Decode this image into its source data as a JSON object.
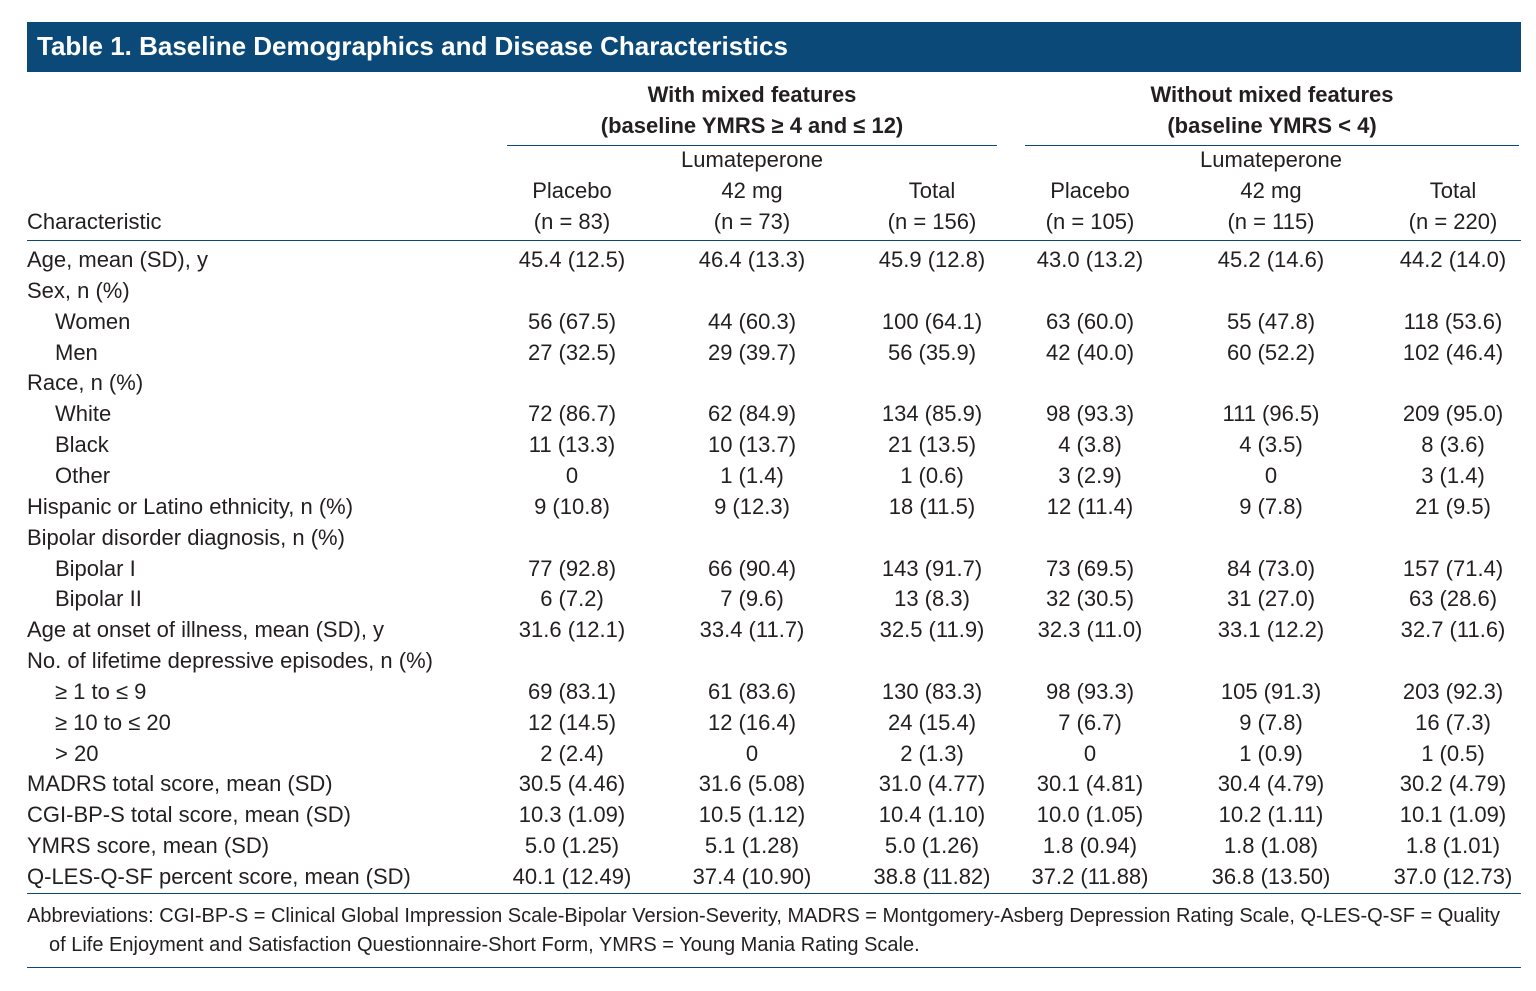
{
  "title": "Table 1. Baseline Demographics and Disease Characteristics",
  "stub_header": "Characteristic",
  "groups": [
    {
      "lines": [
        "With mixed features",
        "(baseline YMRS ≥ 4 and ≤ 12)"
      ],
      "columns": [
        {
          "lines": [
            "Placebo",
            "(n = 83)"
          ]
        },
        {
          "lines": [
            "Lumateperone",
            "42 mg",
            "(n = 73)"
          ]
        },
        {
          "lines": [
            "Total",
            "(n = 156)"
          ]
        }
      ]
    },
    {
      "lines": [
        "Without mixed features",
        "(baseline YMRS < 4)"
      ],
      "columns": [
        {
          "lines": [
            "Placebo",
            "(n = 105)"
          ]
        },
        {
          "lines": [
            "Lumateperone",
            "42 mg",
            "(n = 115)"
          ]
        },
        {
          "lines": [
            "Total",
            "(n = 220)"
          ]
        }
      ]
    }
  ],
  "rows": [
    {
      "label": "Age, mean (SD), y",
      "values": [
        "45.4 (12.5)",
        "46.4 (13.3)",
        "45.9 (12.8)",
        "43.0 (13.2)",
        "45.2 (14.6)",
        "44.2 (14.0)"
      ]
    },
    {
      "label": "Sex, n (%)",
      "rows": [
        {
          "label": "Women",
          "values": [
            "56 (67.5)",
            "44 (60.3)",
            "100 (64.1)",
            "63 (60.0)",
            "55 (47.8)",
            "118 (53.6)"
          ]
        },
        {
          "label": "Men",
          "values": [
            "27 (32.5)",
            "29 (39.7)",
            "56 (35.9)",
            "42 (40.0)",
            "60 (52.2)",
            "102 (46.4)"
          ]
        }
      ]
    },
    {
      "label": "Race, n (%)",
      "rows": [
        {
          "label": "White",
          "values": [
            "72 (86.7)",
            "62 (84.9)",
            "134 (85.9)",
            "98 (93.3)",
            "111 (96.5)",
            "209 (95.0)"
          ]
        },
        {
          "label": "Black",
          "values": [
            "11 (13.3)",
            "10 (13.7)",
            "21 (13.5)",
            "4 (3.8)",
            "4 (3.5)",
            "8 (3.6)"
          ]
        },
        {
          "label": "Other",
          "values": [
            "0",
            "1 (1.4)",
            "1 (0.6)",
            "3 (2.9)",
            "0",
            "3 (1.4)"
          ]
        }
      ]
    },
    {
      "label": "Hispanic or Latino ethnicity, n (%)",
      "values": [
        "9 (10.8)",
        "9 (12.3)",
        "18 (11.5)",
        "12 (11.4)",
        "9 (7.8)",
        "21 (9.5)"
      ]
    },
    {
      "label": "Bipolar disorder diagnosis, n (%)",
      "rows": [
        {
          "label": "Bipolar I",
          "values": [
            "77 (92.8)",
            "66 (90.4)",
            "143 (91.7)",
            "73 (69.5)",
            "84 (73.0)",
            "157 (71.4)"
          ]
        },
        {
          "label": "Bipolar II",
          "values": [
            "6 (7.2)",
            "7 (9.6)",
            "13 (8.3)",
            "32 (30.5)",
            "31 (27.0)",
            "63 (28.6)"
          ]
        }
      ]
    },
    {
      "label": "Age at onset of illness, mean (SD), y",
      "values": [
        "31.6 (12.1)",
        "33.4 (11.7)",
        "32.5 (11.9)",
        "32.3 (11.0)",
        "33.1 (12.2)",
        "32.7 (11.6)"
      ]
    },
    {
      "label": "No. of lifetime depressive episodes, n (%)",
      "rows": [
        {
          "label": "≥ 1 to ≤ 9",
          "values": [
            "69 (83.1)",
            "61 (83.6)",
            "130 (83.3)",
            "98 (93.3)",
            "105 (91.3)",
            "203 (92.3)"
          ]
        },
        {
          "label": "≥ 10 to ≤ 20",
          "values": [
            "12 (14.5)",
            "12 (16.4)",
            "24 (15.4)",
            "7 (6.7)",
            "9 (7.8)",
            "16 (7.3)"
          ]
        },
        {
          "label": "> 20",
          "values": [
            "2 (2.4)",
            "0",
            "2 (1.3)",
            "0",
            "1 (0.9)",
            "1 (0.5)"
          ]
        }
      ]
    },
    {
      "label": "MADRS total score, mean (SD)",
      "values": [
        "30.5 (4.46)",
        "31.6 (5.08)",
        "31.0 (4.77)",
        "30.1 (4.81)",
        "30.4 (4.79)",
        "30.2 (4.79)"
      ]
    },
    {
      "label": "CGI-BP-S total score, mean (SD)",
      "values": [
        "10.3 (1.09)",
        "10.5 (1.12)",
        "10.4 (1.10)",
        "10.0 (1.05)",
        "10.2 (1.11)",
        "10.1 (1.09)"
      ]
    },
    {
      "label": "YMRS score, mean (SD)",
      "values": [
        "5.0 (1.25)",
        "5.1 (1.28)",
        "5.0 (1.26)",
        "1.8 (0.94)",
        "1.8 (1.08)",
        "1.8 (1.01)"
      ]
    },
    {
      "label": "Q-LES-Q-SF percent score, mean (SD)",
      "values": [
        "40.1 (12.49)",
        "37.4 (10.90)",
        "38.8 (11.82)",
        "37.2 (11.88)",
        "36.8 (13.50)",
        "37.0 (12.73)"
      ]
    }
  ],
  "footnote": "Abbreviations: CGI-BP-S = Clinical Global Impression Scale-Bipolar Version-Severity, MADRS = Montgomery-Asberg Depression Rating Scale, Q-LES-Q-SF = Quality of Life Enjoyment and Satisfaction Questionnaire-Short Form, YMRS = Young Mania Rating Scale."
}
